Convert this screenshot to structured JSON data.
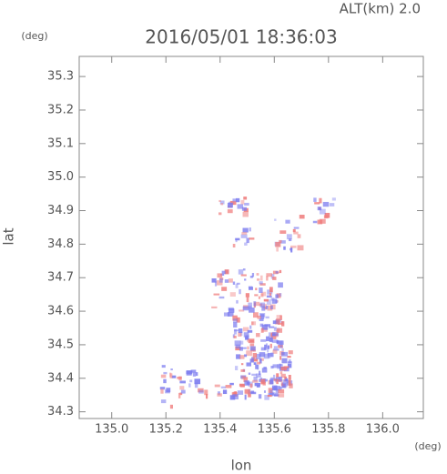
{
  "chart_data": {
    "type": "map",
    "title": "2016/05/01 18:36:03",
    "subtitle": "ALT(km) 2.0",
    "y_unit": "(deg)",
    "x_unit": "(deg)",
    "xlabel": "lon",
    "ylabel": "lat",
    "xlim": [
      134.88,
      136.15
    ],
    "ylim": [
      34.28,
      35.36
    ],
    "xticks": [
      {
        "value": 135,
        "label": "135.0"
      },
      135.2,
      135.4,
      135.6,
      135.8,
      {
        "value": 136,
        "label": "136.0"
      }
    ],
    "yticks": [
      34.3,
      34.4,
      34.5,
      34.6,
      34.7,
      34.8,
      34.9,
      {
        "value": 35,
        "label": "35.0"
      },
      35.1,
      35.2,
      35.3
    ],
    "colors": [
      "#7b7bef",
      "#ef7b7b"
    ]
  }
}
